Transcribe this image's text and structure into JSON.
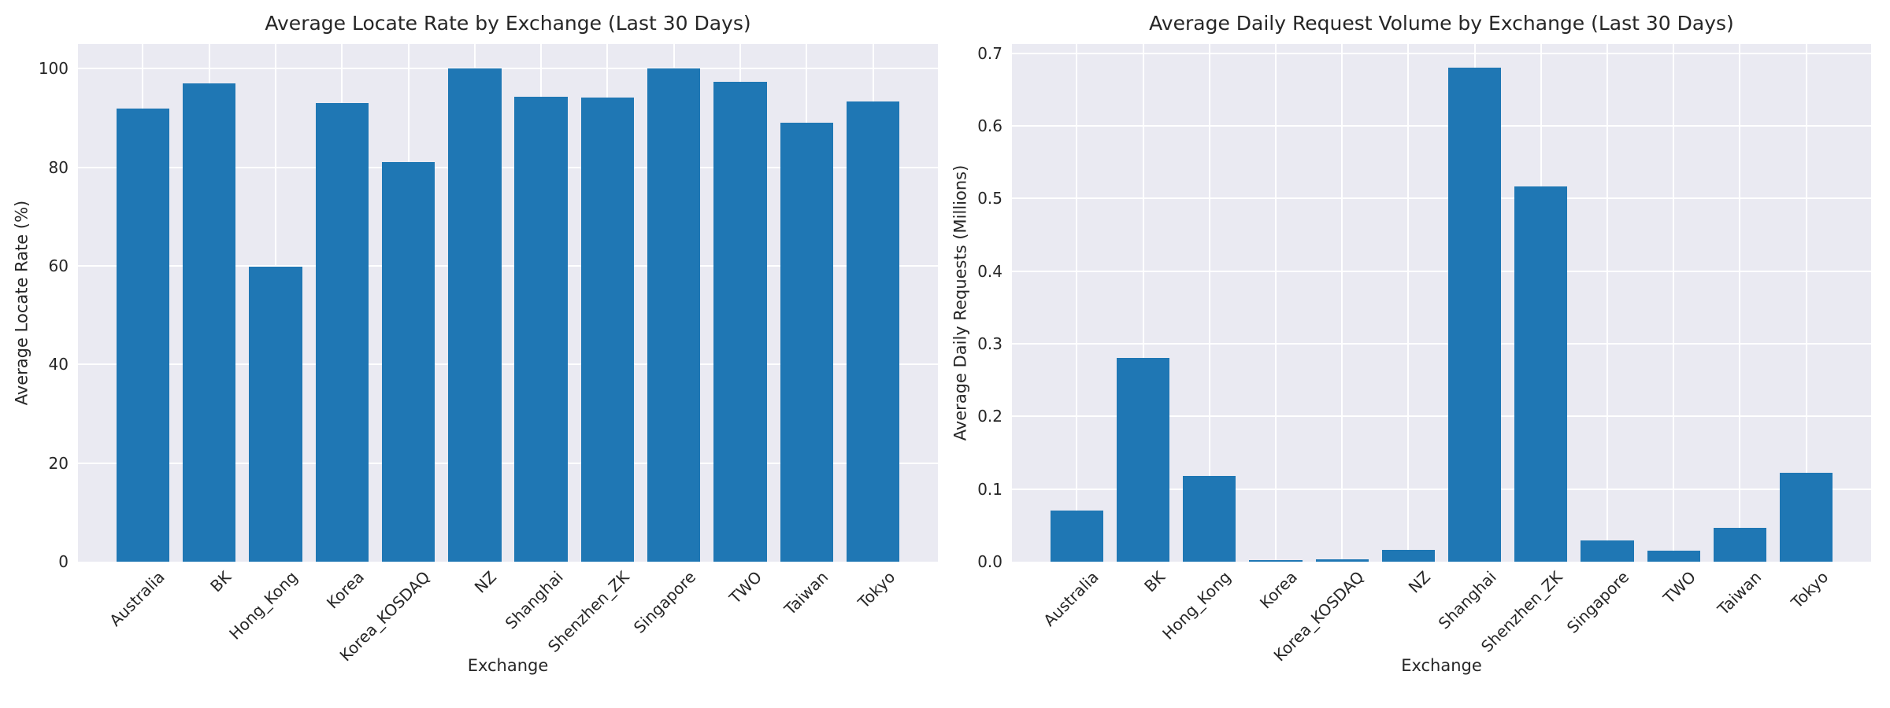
{
  "figure": {
    "background": "#ffffff"
  },
  "style": {
    "bar_color": "#1f77b4",
    "plot_background": "#eaeaf2",
    "grid_color": "#ffffff",
    "text_color": "#262626"
  },
  "chart_data": [
    {
      "type": "bar",
      "title": "Average Locate Rate by Exchange (Last 30 Days)",
      "xlabel": "Exchange",
      "ylabel": "Average Locate Rate (%)",
      "categories": [
        "Australia",
        "BK",
        "Hong_Kong",
        "Korea",
        "Korea_KOSDAQ",
        "NZ",
        "Shanghai",
        "Shenzhen_ZK",
        "Singapore",
        "TWO",
        "Taiwan",
        "Tokyo"
      ],
      "values": [
        91.9,
        97.0,
        59.8,
        93.1,
        81.0,
        100.0,
        94.3,
        94.1,
        100.0,
        97.3,
        89.0,
        93.4
      ],
      "ylim": [
        0,
        105
      ],
      "yticks": [
        0,
        20,
        40,
        60,
        80,
        100
      ],
      "ytick_labels": [
        "0",
        "20",
        "40",
        "60",
        "80",
        "100"
      ],
      "grid": true,
      "legend": false,
      "bar_color": "#1f77b4"
    },
    {
      "type": "bar",
      "title": "Average Daily Request Volume by Exchange (Last 30 Days)",
      "xlabel": "Exchange",
      "ylabel": "Average Daily Requests (Millions)",
      "categories": [
        "Australia",
        "BK",
        "Hong_Kong",
        "Korea",
        "Korea_KOSDAQ",
        "NZ",
        "Shanghai",
        "Shenzhen_ZK",
        "Singapore",
        "TWO",
        "Taiwan",
        "Tokyo"
      ],
      "values": [
        0.07,
        0.28,
        0.118,
        0.002,
        0.003,
        0.016,
        0.68,
        0.516,
        0.029,
        0.015,
        0.047,
        0.122
      ],
      "ylim": [
        0,
        0.7125
      ],
      "yticks": [
        0,
        0.1,
        0.2,
        0.3,
        0.4,
        0.5,
        0.6,
        0.7
      ],
      "ytick_labels": [
        "0.0",
        "0.1",
        "0.2",
        "0.3",
        "0.4",
        "0.5",
        "0.6",
        "0.7"
      ],
      "grid": true,
      "legend": false,
      "bar_color": "#1f77b4"
    }
  ]
}
